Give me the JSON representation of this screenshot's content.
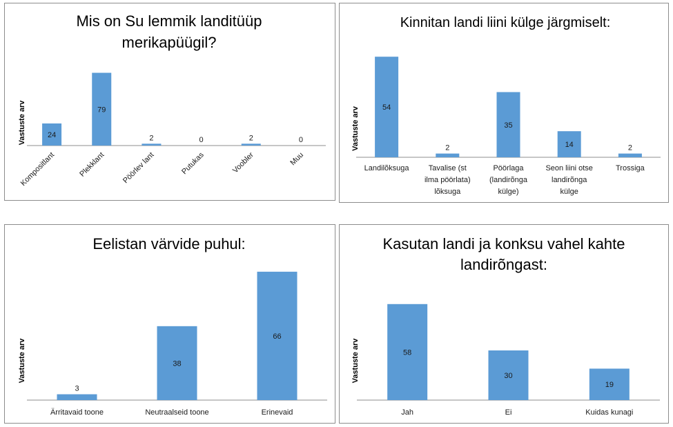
{
  "colors": {
    "bar": "#5b9bd5",
    "axis": "#8c8c8c",
    "text": "#1a1a1a"
  },
  "chart_data": [
    {
      "type": "bar",
      "title": "Mis on Su lemmik landitüüp merikapüügil?",
      "ylabel": "Vastuste arv",
      "xlabel": "",
      "categories": [
        "Kompositlant",
        "Plekklant",
        "Pöörlev lant",
        "Putukas",
        "Voobler",
        "Muu"
      ],
      "values": [
        24,
        79,
        2,
        0,
        2,
        0
      ],
      "ylim": [
        0,
        85
      ],
      "grid": false,
      "legend": "none"
    },
    {
      "type": "bar",
      "title": "Kinnitan landi liini külge järgmiselt:",
      "ylabel": "Vastuste arv",
      "xlabel": "",
      "categories": [
        "Landilõksuga",
        "Tavalise (st ilma pöörlata) lõksuga",
        "Pöörlaga (landirõnga külge)",
        "Seon liini otse landirõnga külge",
        "Trossiga"
      ],
      "values": [
        54,
        2,
        35,
        14,
        2
      ],
      "ylim": [
        0,
        58
      ],
      "grid": false,
      "legend": "none"
    },
    {
      "type": "bar",
      "title": "Eelistan värvide puhul:",
      "ylabel": "Vastuste arv",
      "xlabel": "",
      "categories": [
        "Ärritavaid toone",
        "Neutraalseid toone",
        "Erinevaid"
      ],
      "values": [
        3,
        38,
        66
      ],
      "ylim": [
        0,
        66
      ],
      "grid": false,
      "legend": "none"
    },
    {
      "type": "bar",
      "title": "Kasutan landi ja konksu vahel kahte landirõngast:",
      "ylabel": "Vastuste arv",
      "xlabel": "",
      "categories": [
        "Jah",
        "Ei",
        "Kuidas kunagi"
      ],
      "values": [
        58,
        30,
        19
      ],
      "ylim": [
        0,
        58
      ],
      "grid": false,
      "legend": "none"
    }
  ]
}
